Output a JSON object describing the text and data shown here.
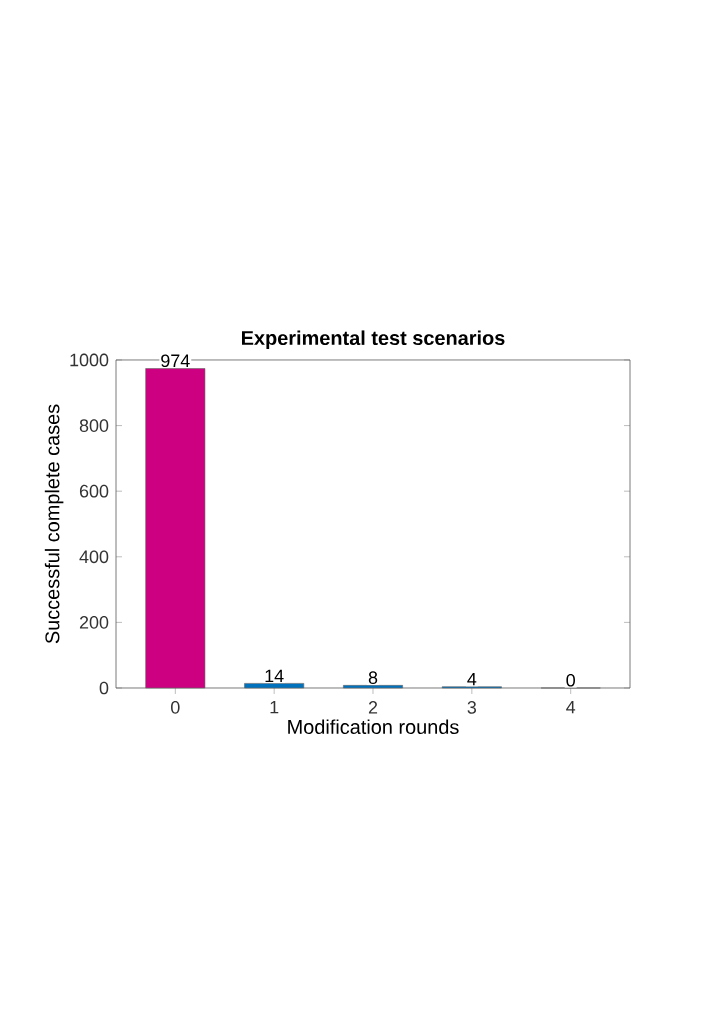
{
  "chart_data": {
    "type": "bar",
    "title": "Experimental test scenarios",
    "xlabel": "Modification rounds",
    "ylabel": "Successful complete cases",
    "categories": [
      "0",
      "1",
      "2",
      "3",
      "4"
    ],
    "values": [
      974,
      14,
      8,
      4,
      0
    ],
    "colors": [
      "#cc0080",
      "#0072bd",
      "#0072bd",
      "#0072bd",
      "#0072bd"
    ],
    "ylim": [
      0,
      1000
    ],
    "yticks": [
      0,
      200,
      400,
      600,
      800,
      1000
    ],
    "data_labels": true
  }
}
